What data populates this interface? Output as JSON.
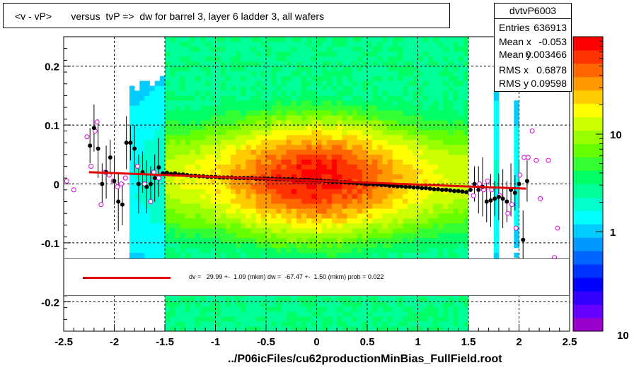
{
  "title": "<v - vP>       versus  tvP =>  dw for barrel 3, layer 6 ladder 3, all wafers",
  "stats": {
    "name": "dvtvP6003",
    "rows": [
      {
        "label": "Entries",
        "value": "636913"
      },
      {
        "label": "Mean x",
        "value": "-0.053"
      },
      {
        "label": "Mean y",
        "value": "0.003466"
      },
      {
        "label": "RMS x",
        "value": "0.6878"
      },
      {
        "label": "RMS y",
        "value": "0.09598"
      }
    ]
  },
  "fit_text": "dv =   29.99 +-  1.09 (mkm) dw =  -67.47 +-  1.50 (mkm) prob = 0.022",
  "footer": "../P06icFiles/cu62productionMinBias_FullField.root",
  "colors": {
    "fit_line": "#e00000",
    "profile": "#000000",
    "outlier": "#e000e0"
  },
  "chart_data": {
    "type": "heatmap",
    "xlim": [
      -2.5,
      2.5
    ],
    "ylim": [
      -0.25,
      0.25
    ],
    "x_ticks": [
      "-2.5",
      "-2",
      "-1.5",
      "-1",
      "-0.5",
      "0",
      "0.5",
      "1",
      "1.5",
      "2",
      "2.5"
    ],
    "x_tick_values": [
      -2.5,
      -2,
      -1.5,
      -1,
      -0.5,
      0,
      0.5,
      1,
      1.5,
      2,
      2.5
    ],
    "y_ticks": [
      "0.2",
      "0.1",
      "0",
      "-0.1",
      "-0.2"
    ],
    "y_tick_values": [
      0.2,
      0.1,
      0,
      -0.1,
      -0.2
    ],
    "colorbar": {
      "scale": "log",
      "labels": [
        "10",
        "1"
      ],
      "label_values": [
        10,
        1
      ],
      "min_label": "10"
    },
    "grid": true,
    "profile": {
      "x": [
        -2.24,
        -2.2,
        -2.16,
        -2.12,
        -2.08,
        -2.04,
        -2.0,
        -1.96,
        -1.92,
        -1.88,
        -1.84,
        -1.8,
        -1.76,
        -1.72,
        -1.68,
        -1.64,
        -1.6,
        -1.56,
        -1.52,
        -1.48,
        -1.44,
        -1.4,
        -1.36,
        -1.32,
        -1.28,
        -1.24,
        -1.2,
        -1.16,
        -1.12,
        -1.08,
        -1.04,
        -1.0,
        -0.96,
        -0.92,
        -0.88,
        -0.84,
        -0.8,
        -0.76,
        -0.72,
        -0.68,
        -0.64,
        -0.6,
        -0.56,
        -0.52,
        -0.48,
        -0.44,
        -0.4,
        -0.36,
        -0.32,
        -0.28,
        -0.24,
        -0.2,
        -0.16,
        -0.12,
        -0.08,
        -0.04,
        0.0,
        0.04,
        0.08,
        0.12,
        0.16,
        0.2,
        0.24,
        0.28,
        0.32,
        0.36,
        0.4,
        0.44,
        0.48,
        0.52,
        0.56,
        0.6,
        0.64,
        0.68,
        0.72,
        0.76,
        0.8,
        0.84,
        0.88,
        0.92,
        0.96,
        1.0,
        1.04,
        1.08,
        1.12,
        1.16,
        1.2,
        1.24,
        1.28,
        1.32,
        1.36,
        1.4,
        1.44,
        1.48,
        1.52,
        1.56,
        1.6,
        1.64,
        1.68,
        1.72,
        1.76,
        1.8,
        1.84,
        1.88,
        1.92,
        1.96,
        2.0,
        2.04,
        2.08
      ],
      "y": [
        0.065,
        0.095,
        0.06,
        0.0,
        0.02,
        0.045,
        0.005,
        -0.03,
        -0.035,
        0.07,
        0.07,
        0.06,
        0.0,
        0.02,
        -0.005,
        0.0,
        0.01,
        0.028,
        0.018,
        0.019,
        0.017,
        0.018,
        0.016,
        0.016,
        0.015,
        0.014,
        0.014,
        0.013,
        0.013,
        0.012,
        0.012,
        0.012,
        0.011,
        0.011,
        0.011,
        0.011,
        0.01,
        0.01,
        0.01,
        0.01,
        0.01,
        0.009,
        0.009,
        0.009,
        0.009,
        0.009,
        0.008,
        0.008,
        0.008,
        0.008,
        0.008,
        0.007,
        0.007,
        0.007,
        0.007,
        0.006,
        0.006,
        0.006,
        0.005,
        0.005,
        0.004,
        0.004,
        0.003,
        0.003,
        0.002,
        0.002,
        0.001,
        0.001,
        0.0,
        0.0,
        -0.001,
        -0.001,
        -0.002,
        -0.002,
        -0.003,
        -0.003,
        -0.004,
        -0.004,
        -0.005,
        -0.005,
        -0.006,
        -0.006,
        -0.007,
        -0.007,
        -0.008,
        -0.009,
        -0.009,
        -0.01,
        -0.01,
        -0.011,
        -0.012,
        -0.012,
        -0.013,
        -0.014,
        -0.01,
        0.0,
        -0.01,
        -0.005,
        -0.03,
        -0.028,
        -0.025,
        -0.022,
        -0.025,
        -0.03,
        -0.01,
        -0.015,
        0.0,
        -0.095,
        0.005
      ]
    },
    "outliers": {
      "x": [
        -2.47,
        -2.4,
        -2.27,
        -2.23,
        -2.19,
        -2.17,
        -2.13,
        -2.09,
        -2.05,
        -2.01,
        -1.97,
        -1.93,
        -1.89,
        -1.77,
        -1.7,
        -1.64,
        -1.61,
        -1.56,
        1.55,
        1.61,
        1.65,
        1.69,
        1.73,
        1.81,
        1.89,
        1.93,
        1.97,
        2.01,
        2.05,
        2.09,
        2.13,
        2.17,
        2.21,
        2.29,
        2.35,
        2.38,
        2.41
      ],
      "y": [
        0.005,
        -0.01,
        0.08,
        0.03,
        0.09,
        0.105,
        -0.035,
        0.02,
        0.015,
        0.005,
        -0.005,
        0.0,
        0.01,
        0.03,
        0.0,
        -0.03,
        0.02,
        0.01,
        -0.02,
        0.0,
        -0.01,
        0.005,
        -0.01,
        -0.02,
        -0.05,
        -0.035,
        -0.075,
        0.015,
        0.045,
        0.045,
        0.09,
        0.04,
        -0.025,
        0.04,
        -0.125,
        -0.075,
        0.16
      ]
    },
    "fit_line": {
      "x": [
        -2.25,
        2.07
      ],
      "y": [
        0.02,
        -0.008
      ]
    }
  }
}
